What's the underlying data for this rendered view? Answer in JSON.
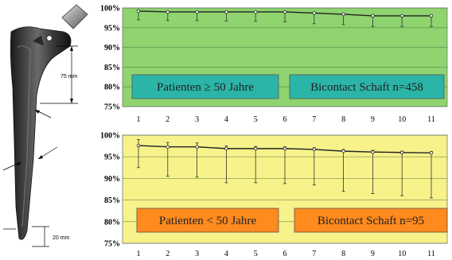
{
  "implant": {
    "label_75": "75 mm",
    "label_20": "20 mm"
  },
  "chart_data": [
    {
      "type": "line",
      "x": [
        1,
        2,
        3,
        4,
        5,
        6,
        7,
        8,
        9,
        10,
        11
      ],
      "yticks": [
        "75%",
        "80%",
        "85%",
        "90%",
        "95%",
        "100%"
      ],
      "ylim": [
        75,
        100
      ],
      "series": [
        {
          "values": [
            99.2,
            99.0,
            99.0,
            99.0,
            99.0,
            99.0,
            98.7,
            98.4,
            98.0,
            98.0,
            98.0
          ],
          "lower": [
            97.0,
            96.8,
            96.8,
            96.7,
            96.6,
            96.5,
            96.0,
            95.8,
            95.3,
            95.3,
            95.3
          ]
        }
      ],
      "annotations": [
        "Patienten ≥ 50 Jahre",
        "Bicontact Schaft n=458"
      ],
      "background": "#8fd46f",
      "box_color": "#2bb5a8",
      "grid": true
    },
    {
      "type": "line",
      "x": [
        1,
        2,
        3,
        4,
        5,
        6,
        7,
        8,
        9,
        10,
        11
      ],
      "yticks": [
        "75%",
        "80%",
        "85%",
        "90%",
        "95%",
        "100%"
      ],
      "ylim": [
        75,
        100
      ],
      "series": [
        {
          "values": [
            97.6,
            97.3,
            97.3,
            96.9,
            96.9,
            96.9,
            96.7,
            96.3,
            96.1,
            96.0,
            95.9
          ],
          "lower": [
            92.5,
            90.5,
            90.3,
            89.0,
            89.0,
            88.8,
            88.5,
            87.0,
            86.5,
            86.0,
            85.5
          ],
          "upper": [
            99.0,
            98.3,
            98.2,
            97.5,
            97.4,
            97.3,
            97.1,
            96.7,
            96.5,
            96.3,
            96.2
          ]
        }
      ],
      "annotations": [
        "Patienten < 50 Jahre",
        "Bicontact Schaft n=95"
      ],
      "background": "#f7f28a",
      "box_color": "#ff8a1e",
      "grid": true
    }
  ]
}
